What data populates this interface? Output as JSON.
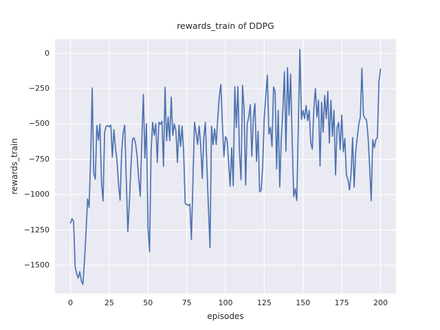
{
  "figure": {
    "background": "#ffffff",
    "axes_background": "#eaeaf2",
    "grid_color": "#ffffff",
    "text_color": "#262626"
  },
  "chart_data": {
    "type": "line",
    "title": "rewards_train of DDPG",
    "xlabel": "episodes",
    "ylabel": "rewards_train",
    "grid": true,
    "legend_position": "none",
    "xlim": [
      -10,
      210
    ],
    "ylim": [
      -1700,
      100
    ],
    "xticks": [
      0,
      25,
      50,
      75,
      100,
      125,
      150,
      175,
      200
    ],
    "yticks": [
      0,
      -250,
      -500,
      -750,
      -1000,
      -1250,
      -1500
    ],
    "series": [
      {
        "name": "rewards_train",
        "color": "#4c72b0",
        "x_start": 0,
        "x_step": 1,
        "y": [
          -1200,
          -1170,
          -1190,
          -1510,
          -1560,
          -1590,
          -1545,
          -1610,
          -1635,
          -1470,
          -1270,
          -1030,
          -1090,
          -740,
          -245,
          -850,
          -890,
          -510,
          -615,
          -500,
          -910,
          -1045,
          -560,
          -515,
          -512,
          -520,
          -508,
          -735,
          -540,
          -670,
          -758,
          -930,
          -1040,
          -700,
          -560,
          -508,
          -905,
          -1262,
          -1050,
          -800,
          -608,
          -598,
          -640,
          -730,
          -887,
          -1012,
          -620,
          -290,
          -742,
          -498,
          -1230,
          -1405,
          -690,
          -488,
          -580,
          -498,
          -772,
          -488,
          -502,
          -480,
          -800,
          -240,
          -618,
          -450,
          -618,
          -310,
          -580,
          -500,
          -548,
          -772,
          -508,
          -660,
          -515,
          -702,
          -1062,
          -1070,
          -1076,
          -1068,
          -1318,
          -902,
          -488,
          -560,
          -645,
          -514,
          -650,
          -886,
          -596,
          -488,
          -802,
          -1100,
          -1375,
          -515,
          -645,
          -534,
          -645,
          -460,
          -302,
          -220,
          -502,
          -730,
          -590,
          -612,
          -765,
          -940,
          -668,
          -938,
          -236,
          -525,
          -236,
          -700,
          -894,
          -226,
          -402,
          -932,
          -500,
          -452,
          -365,
          -730,
          -452,
          -356,
          -764,
          -552,
          -980,
          -970,
          -800,
          -452,
          -302,
          -155,
          -572,
          -524,
          -660,
          -238,
          -270,
          -818,
          -404,
          -946,
          -602,
          -404,
          -130,
          -692,
          -102,
          -438,
          -148,
          -602,
          -1014,
          -958,
          -1042,
          -502,
          28,
          -467,
          -404,
          -462,
          -370,
          -476,
          -404,
          -630,
          -678,
          -390,
          -250,
          -452,
          -332,
          -798,
          -346,
          -558,
          -298,
          -462,
          -269,
          -635,
          -332,
          -587,
          -404,
          -861,
          -524,
          -490,
          -683,
          -438,
          -697,
          -602,
          -861,
          -892,
          -967,
          -850,
          -596,
          -947,
          -702,
          -596,
          -500,
          -452,
          -106,
          -438,
          -460,
          -472,
          -596,
          -802,
          -1043,
          -611,
          -668,
          -611,
          -596,
          -200,
          -112
        ]
      }
    ]
  }
}
